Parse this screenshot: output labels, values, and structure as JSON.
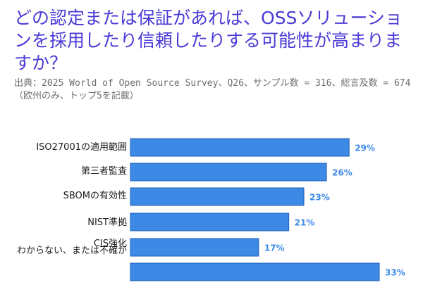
{
  "header": {
    "title": "どの認定または保証があれば、OSSソリューションを採用したり信頼したりする可能性が高まりますか？",
    "subtitle": "出典：2025 World of Open Source Survey、Q26、サンプル数 = 316、総言及数 = 674（欧州のみ、トップ5を記載）"
  },
  "colors": {
    "title": "#4a3ad6",
    "bar": "#3c8ae6",
    "bar_edge": "#1f5fb8",
    "value_label": "#3c8ae6"
  },
  "chart_data": {
    "type": "bar",
    "orientation": "horizontal",
    "categories": [
      "ISO27001の適用範囲",
      "第三者監査",
      "SBOMの有効性",
      "NIST準拠",
      "CIS強化",
      "わからない、または不確か"
    ],
    "values": [
      29,
      26,
      23,
      21,
      17,
      33
    ],
    "value_labels": [
      "29%",
      "26%",
      "23%",
      "21%",
      "17%",
      "33%"
    ],
    "unit": "%",
    "xlim": [
      0,
      33
    ],
    "grid": false,
    "legend": "none"
  }
}
